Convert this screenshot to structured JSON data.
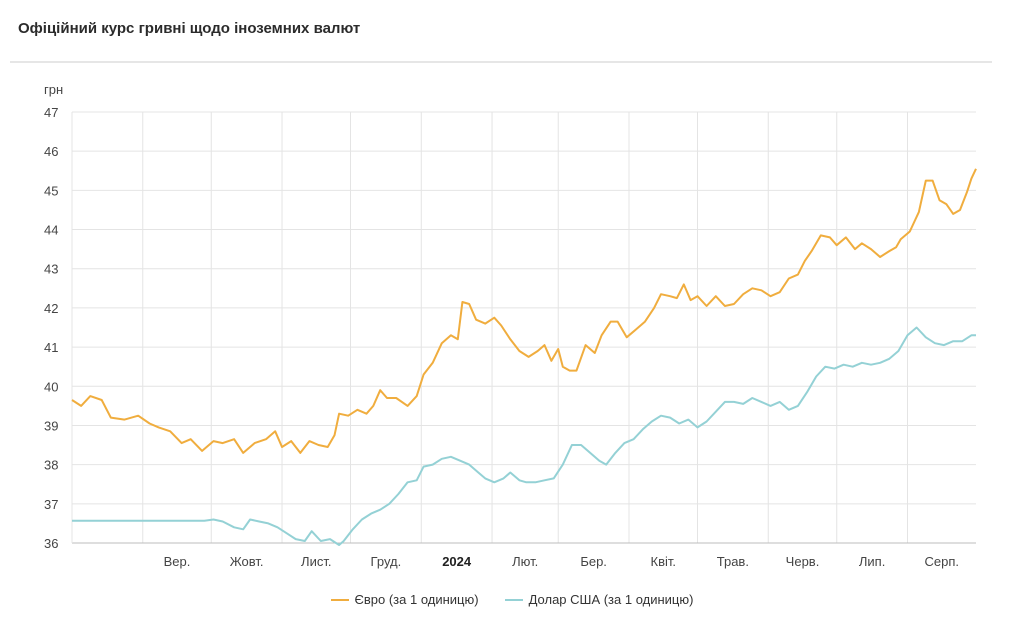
{
  "header": {
    "title": "Офіційний курс гривні щодо іноземних валют"
  },
  "chart_data": {
    "type": "line",
    "ylabel": "грн",
    "ylim": [
      36,
      47
    ],
    "yticks": [
      36,
      37,
      38,
      39,
      40,
      41,
      42,
      43,
      44,
      45,
      46,
      47
    ],
    "x_range": [
      "2023-08-01",
      "2024-08-31"
    ],
    "x_ticks": [
      {
        "label": "Вер.",
        "date": "2023-09-01"
      },
      {
        "label": "Жовт.",
        "date": "2023-10-01"
      },
      {
        "label": "Лист.",
        "date": "2023-11-01"
      },
      {
        "label": "Груд.",
        "date": "2023-12-01"
      },
      {
        "label": "2024",
        "date": "2024-01-01",
        "bold": true
      },
      {
        "label": "Лют.",
        "date": "2024-02-01"
      },
      {
        "label": "Бер.",
        "date": "2024-03-01"
      },
      {
        "label": "Квіт.",
        "date": "2024-04-01"
      },
      {
        "label": "Трав.",
        "date": "2024-05-01"
      },
      {
        "label": "Черв.",
        "date": "2024-06-01"
      },
      {
        "label": "Лип.",
        "date": "2024-07-01"
      },
      {
        "label": "Серп.",
        "date": "2024-08-01"
      }
    ],
    "grid": true,
    "legend_position": "bottom",
    "series": [
      {
        "name": "Євро (за 1 одиницю)",
        "color": "#f0ad3e",
        "points": [
          [
            "2023-08-01",
            39.65
          ],
          [
            "2023-08-05",
            39.5
          ],
          [
            "2023-08-09",
            39.75
          ],
          [
            "2023-08-14",
            39.65
          ],
          [
            "2023-08-18",
            39.2
          ],
          [
            "2023-08-24",
            39.15
          ],
          [
            "2023-08-30",
            39.25
          ],
          [
            "2023-09-04",
            39.05
          ],
          [
            "2023-09-08",
            38.95
          ],
          [
            "2023-09-13",
            38.85
          ],
          [
            "2023-09-18",
            38.55
          ],
          [
            "2023-09-22",
            38.65
          ],
          [
            "2023-09-27",
            38.35
          ],
          [
            "2023-10-02",
            38.6
          ],
          [
            "2023-10-06",
            38.55
          ],
          [
            "2023-10-11",
            38.65
          ],
          [
            "2023-10-15",
            38.3
          ],
          [
            "2023-10-20",
            38.55
          ],
          [
            "2023-10-25",
            38.65
          ],
          [
            "2023-10-29",
            38.85
          ],
          [
            "2023-11-01",
            38.45
          ],
          [
            "2023-11-05",
            38.6
          ],
          [
            "2023-11-09",
            38.3
          ],
          [
            "2023-11-13",
            38.6
          ],
          [
            "2023-11-17",
            38.5
          ],
          [
            "2023-11-21",
            38.45
          ],
          [
            "2023-11-24",
            38.75
          ],
          [
            "2023-11-26",
            39.3
          ],
          [
            "2023-11-30",
            39.25
          ],
          [
            "2023-12-04",
            39.4
          ],
          [
            "2023-12-08",
            39.3
          ],
          [
            "2023-12-11",
            39.5
          ],
          [
            "2023-12-14",
            39.9
          ],
          [
            "2023-12-17",
            39.7
          ],
          [
            "2023-12-21",
            39.7
          ],
          [
            "2023-12-26",
            39.5
          ],
          [
            "2023-12-30",
            39.75
          ],
          [
            "2024-01-02",
            40.3
          ],
          [
            "2024-01-06",
            40.6
          ],
          [
            "2024-01-10",
            41.1
          ],
          [
            "2024-01-14",
            41.3
          ],
          [
            "2024-01-17",
            41.2
          ],
          [
            "2024-01-19",
            42.15
          ],
          [
            "2024-01-22",
            42.1
          ],
          [
            "2024-01-25",
            41.7
          ],
          [
            "2024-01-29",
            41.6
          ],
          [
            "2024-02-02",
            41.75
          ],
          [
            "2024-02-05",
            41.55
          ],
          [
            "2024-02-09",
            41.2
          ],
          [
            "2024-02-13",
            40.9
          ],
          [
            "2024-02-17",
            40.75
          ],
          [
            "2024-02-21",
            40.9
          ],
          [
            "2024-02-24",
            41.05
          ],
          [
            "2024-02-27",
            40.65
          ],
          [
            "2024-03-01",
            40.95
          ],
          [
            "2024-03-03",
            40.5
          ],
          [
            "2024-03-06",
            40.4
          ],
          [
            "2024-03-09",
            40.4
          ],
          [
            "2024-03-13",
            41.05
          ],
          [
            "2024-03-17",
            40.85
          ],
          [
            "2024-03-20",
            41.3
          ],
          [
            "2024-03-24",
            41.65
          ],
          [
            "2024-03-27",
            41.65
          ],
          [
            "2024-03-31",
            41.25
          ],
          [
            "2024-04-04",
            41.45
          ],
          [
            "2024-04-08",
            41.65
          ],
          [
            "2024-04-12",
            42.0
          ],
          [
            "2024-04-15",
            42.35
          ],
          [
            "2024-04-19",
            42.3
          ],
          [
            "2024-04-22",
            42.25
          ],
          [
            "2024-04-25",
            42.6
          ],
          [
            "2024-04-28",
            42.2
          ],
          [
            "2024-05-01",
            42.3
          ],
          [
            "2024-05-05",
            42.05
          ],
          [
            "2024-05-09",
            42.3
          ],
          [
            "2024-05-13",
            42.05
          ],
          [
            "2024-05-17",
            42.1
          ],
          [
            "2024-05-21",
            42.35
          ],
          [
            "2024-05-25",
            42.5
          ],
          [
            "2024-05-29",
            42.45
          ],
          [
            "2024-06-02",
            42.3
          ],
          [
            "2024-06-06",
            42.4
          ],
          [
            "2024-06-10",
            42.75
          ],
          [
            "2024-06-14",
            42.85
          ],
          [
            "2024-06-17",
            43.2
          ],
          [
            "2024-06-20",
            43.45
          ],
          [
            "2024-06-24",
            43.85
          ],
          [
            "2024-06-28",
            43.8
          ],
          [
            "2024-07-01",
            43.6
          ],
          [
            "2024-07-05",
            43.8
          ],
          [
            "2024-07-09",
            43.5
          ],
          [
            "2024-07-12",
            43.65
          ],
          [
            "2024-07-16",
            43.5
          ],
          [
            "2024-07-20",
            43.3
          ],
          [
            "2024-07-24",
            43.45
          ],
          [
            "2024-07-27",
            43.55
          ],
          [
            "2024-07-29",
            43.75
          ],
          [
            "2024-08-02",
            43.95
          ],
          [
            "2024-08-06",
            44.45
          ],
          [
            "2024-08-09",
            45.25
          ],
          [
            "2024-08-12",
            45.25
          ],
          [
            "2024-08-15",
            44.75
          ],
          [
            "2024-08-18",
            44.65
          ],
          [
            "2024-08-21",
            44.4
          ],
          [
            "2024-08-24",
            44.5
          ],
          [
            "2024-08-27",
            44.95
          ],
          [
            "2024-08-29",
            45.3
          ],
          [
            "2024-08-31",
            45.55
          ]
        ]
      },
      {
        "name": "Долар США (за 1 одиницю)",
        "color": "#94d1d5",
        "points": [
          [
            "2023-08-01",
            36.57
          ],
          [
            "2023-08-20",
            36.57
          ],
          [
            "2023-09-10",
            36.57
          ],
          [
            "2023-09-28",
            36.57
          ],
          [
            "2023-10-02",
            36.6
          ],
          [
            "2023-10-06",
            36.55
          ],
          [
            "2023-10-11",
            36.4
          ],
          [
            "2023-10-15",
            36.35
          ],
          [
            "2023-10-18",
            36.6
          ],
          [
            "2023-10-22",
            36.55
          ],
          [
            "2023-10-26",
            36.5
          ],
          [
            "2023-10-30",
            36.4
          ],
          [
            "2023-11-03",
            36.25
          ],
          [
            "2023-11-07",
            36.1
          ],
          [
            "2023-11-11",
            36.05
          ],
          [
            "2023-11-14",
            36.3
          ],
          [
            "2023-11-18",
            36.05
          ],
          [
            "2023-11-22",
            36.1
          ],
          [
            "2023-11-26",
            35.95
          ],
          [
            "2023-11-28",
            36.05
          ],
          [
            "2023-12-02",
            36.35
          ],
          [
            "2023-12-06",
            36.6
          ],
          [
            "2023-12-10",
            36.75
          ],
          [
            "2023-12-14",
            36.85
          ],
          [
            "2023-12-18",
            37.0
          ],
          [
            "2023-12-22",
            37.25
          ],
          [
            "2023-12-26",
            37.55
          ],
          [
            "2023-12-30",
            37.6
          ],
          [
            "2024-01-02",
            37.95
          ],
          [
            "2024-01-06",
            38.0
          ],
          [
            "2024-01-10",
            38.15
          ],
          [
            "2024-01-14",
            38.2
          ],
          [
            "2024-01-18",
            38.1
          ],
          [
            "2024-01-22",
            38.0
          ],
          [
            "2024-01-26",
            37.8
          ],
          [
            "2024-01-29",
            37.65
          ],
          [
            "2024-02-02",
            37.55
          ],
          [
            "2024-02-06",
            37.65
          ],
          [
            "2024-02-09",
            37.8
          ],
          [
            "2024-02-13",
            37.6
          ],
          [
            "2024-02-16",
            37.55
          ],
          [
            "2024-02-20",
            37.55
          ],
          [
            "2024-02-24",
            37.6
          ],
          [
            "2024-02-28",
            37.65
          ],
          [
            "2024-03-03",
            38.0
          ],
          [
            "2024-03-07",
            38.5
          ],
          [
            "2024-03-11",
            38.5
          ],
          [
            "2024-03-15",
            38.3
          ],
          [
            "2024-03-19",
            38.1
          ],
          [
            "2024-03-22",
            38.0
          ],
          [
            "2024-03-26",
            38.3
          ],
          [
            "2024-03-30",
            38.55
          ],
          [
            "2024-04-03",
            38.65
          ],
          [
            "2024-04-07",
            38.9
          ],
          [
            "2024-04-11",
            39.1
          ],
          [
            "2024-04-15",
            39.25
          ],
          [
            "2024-04-19",
            39.2
          ],
          [
            "2024-04-23",
            39.05
          ],
          [
            "2024-04-27",
            39.15
          ],
          [
            "2024-05-01",
            38.95
          ],
          [
            "2024-05-05",
            39.1
          ],
          [
            "2024-05-09",
            39.35
          ],
          [
            "2024-05-13",
            39.6
          ],
          [
            "2024-05-17",
            39.6
          ],
          [
            "2024-05-21",
            39.55
          ],
          [
            "2024-05-25",
            39.7
          ],
          [
            "2024-05-29",
            39.6
          ],
          [
            "2024-06-02",
            39.5
          ],
          [
            "2024-06-06",
            39.6
          ],
          [
            "2024-06-10",
            39.4
          ],
          [
            "2024-06-14",
            39.5
          ],
          [
            "2024-06-18",
            39.85
          ],
          [
            "2024-06-22",
            40.25
          ],
          [
            "2024-06-26",
            40.5
          ],
          [
            "2024-06-30",
            40.45
          ],
          [
            "2024-07-04",
            40.55
          ],
          [
            "2024-07-08",
            40.5
          ],
          [
            "2024-07-12",
            40.6
          ],
          [
            "2024-07-16",
            40.55
          ],
          [
            "2024-07-20",
            40.6
          ],
          [
            "2024-07-24",
            40.7
          ],
          [
            "2024-07-28",
            40.9
          ],
          [
            "2024-08-01",
            41.3
          ],
          [
            "2024-08-05",
            41.5
          ],
          [
            "2024-08-09",
            41.25
          ],
          [
            "2024-08-13",
            41.1
          ],
          [
            "2024-08-17",
            41.05
          ],
          [
            "2024-08-21",
            41.15
          ],
          [
            "2024-08-25",
            41.15
          ],
          [
            "2024-08-29",
            41.3
          ],
          [
            "2024-08-31",
            41.3
          ]
        ]
      }
    ]
  }
}
